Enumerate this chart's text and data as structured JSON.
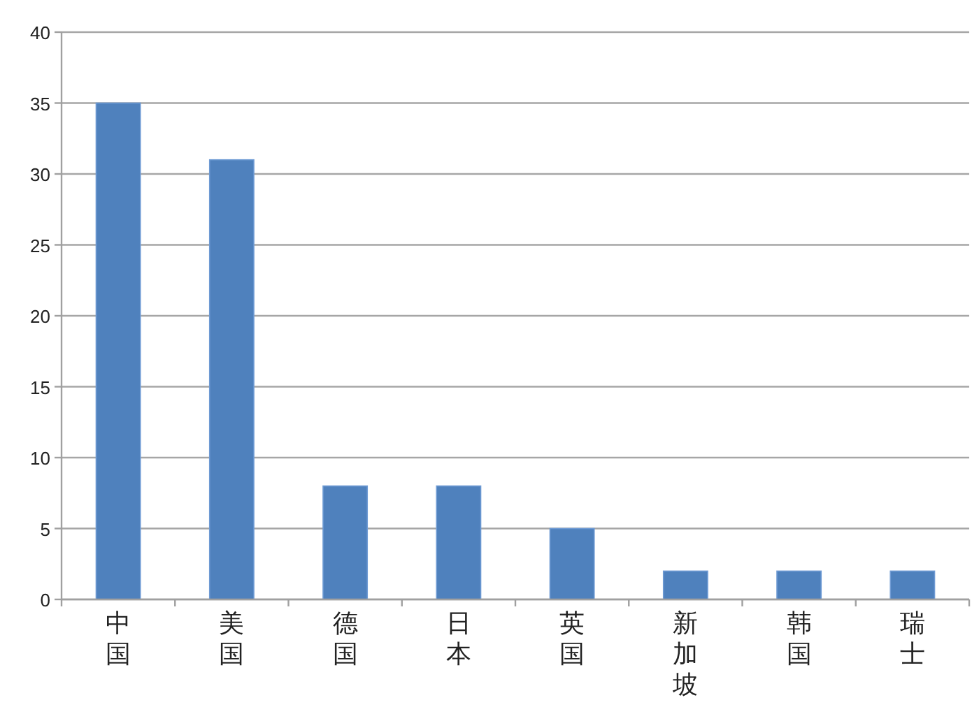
{
  "chart_data": {
    "type": "bar",
    "categories": [
      "中国",
      "美国",
      "德国",
      "日本",
      "英国",
      "新加坡",
      "韩国",
      "瑞士"
    ],
    "values": [
      35,
      31,
      8,
      8,
      5,
      2,
      2,
      2
    ],
    "color": "#4f81bd",
    "ylim": [
      0,
      40
    ],
    "yticks": [
      0,
      5,
      10,
      15,
      20,
      25,
      30,
      35,
      40
    ],
    "grid": "y"
  }
}
